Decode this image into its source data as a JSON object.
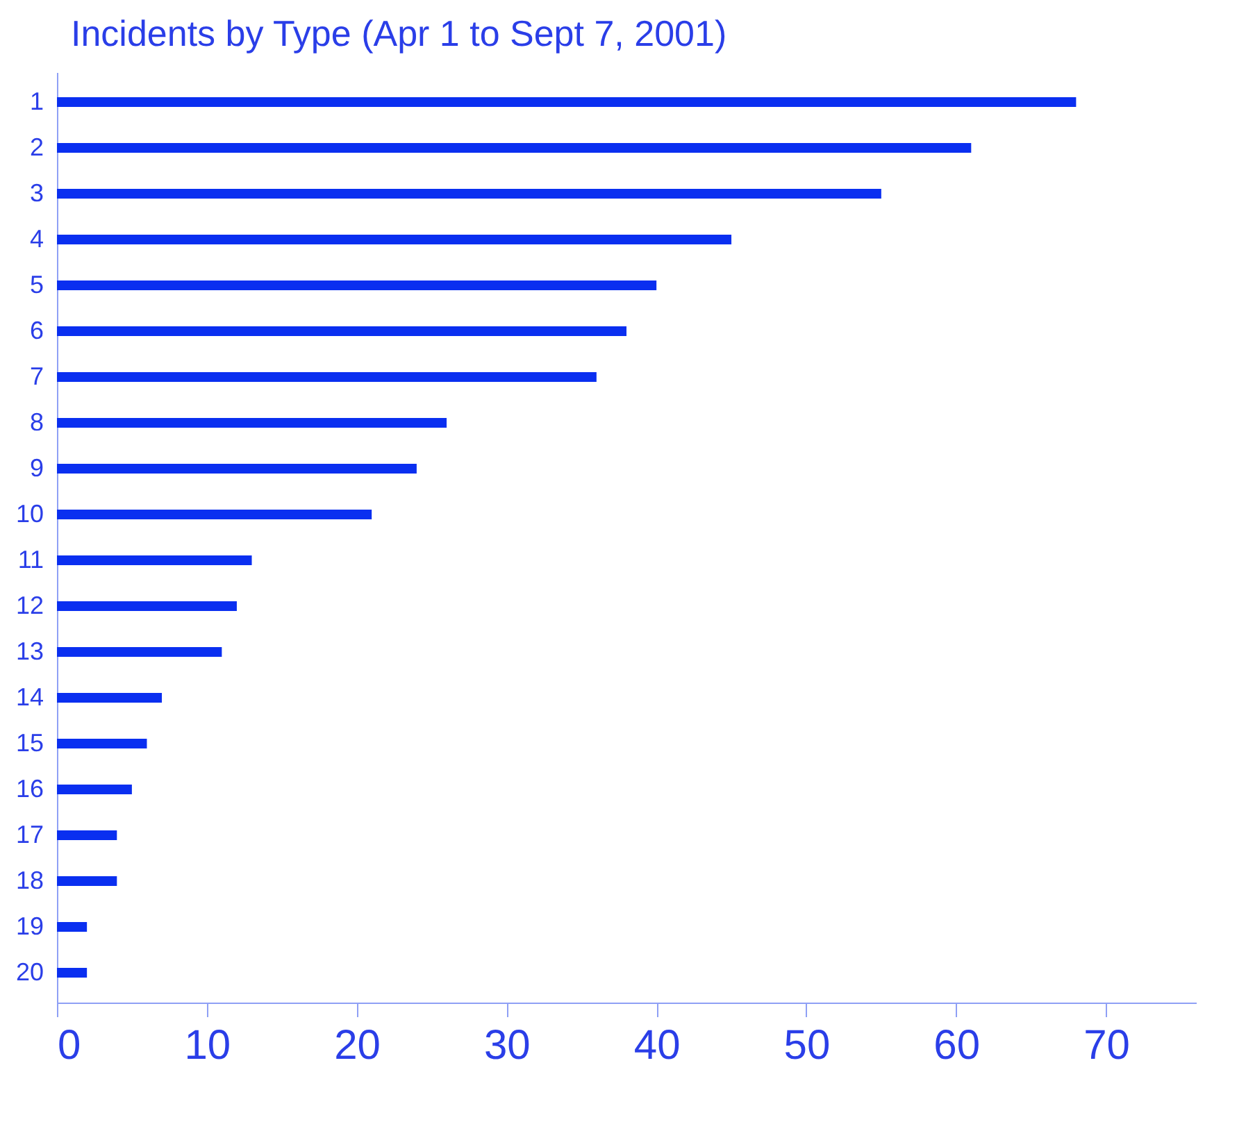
{
  "chart_data": {
    "type": "bar",
    "orientation": "horizontal",
    "title": "Incidents by Type (Apr 1 to Sept 7, 2001)",
    "categories": [
      "1",
      "2",
      "3",
      "4",
      "5",
      "6",
      "7",
      "8",
      "9",
      "10",
      "11",
      "12",
      "13",
      "14",
      "15",
      "16",
      "17",
      "18",
      "19",
      "20"
    ],
    "values": [
      68,
      61,
      55,
      45,
      40,
      38,
      36,
      26,
      24,
      21,
      13,
      12,
      11,
      7,
      6,
      5,
      4,
      4,
      2,
      2
    ],
    "color": "#0a2ff0",
    "xlim": [
      0,
      76
    ],
    "xticks": [
      0,
      10,
      20,
      30,
      40,
      50,
      60,
      70
    ],
    "grid": false
  }
}
